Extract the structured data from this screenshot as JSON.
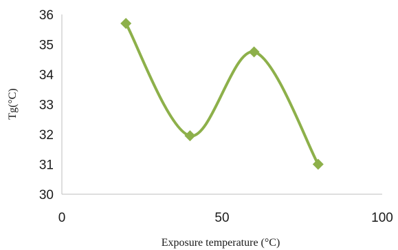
{
  "chart_data": {
    "type": "line",
    "xlabel": "Exposure temperature (°C)",
    "ylabel": "Tg(°C)",
    "xlim": [
      0,
      100
    ],
    "ylim": [
      30,
      36
    ],
    "x_ticks": [
      "0",
      "50",
      "100"
    ],
    "y_ticks": [
      "30",
      "31",
      "32",
      "33",
      "34",
      "35",
      "36"
    ],
    "grid": false,
    "legend": "none",
    "smooth": true,
    "marker": "diamond",
    "color": "#8db04a",
    "series": [
      {
        "x": [
          20,
          40,
          60,
          80
        ],
        "y": [
          35.7,
          31.95,
          34.75,
          31.0
        ]
      }
    ]
  }
}
